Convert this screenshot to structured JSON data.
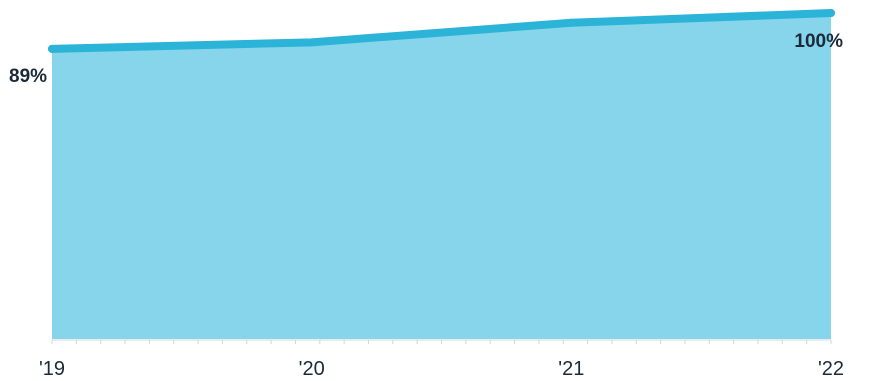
{
  "chart_data": {
    "type": "area",
    "title": "",
    "xlabel": "",
    "ylabel": "",
    "categories": [
      "'19",
      "'20",
      "'21",
      "'22"
    ],
    "series": [
      {
        "values": [
          89,
          91,
          97,
          100
        ],
        "fill_color": "#87d5ea",
        "line_color": "#2bb4d8"
      }
    ],
    "ylim": [
      0,
      100
    ],
    "grid": false,
    "legend": "none",
    "data_labels": [
      {
        "index": 0,
        "text": "89%"
      },
      {
        "index": 3,
        "text": "100%"
      }
    ],
    "colors": {
      "axis": "#cfd8dc",
      "text": "#1b2a3a"
    }
  }
}
